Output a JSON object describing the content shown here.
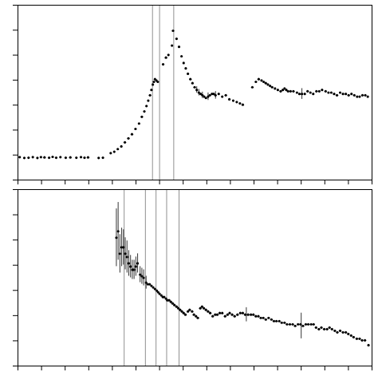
{
  "chart_data": [
    {
      "type": "scatter",
      "x": [
        0.005,
        0.018,
        0.03,
        0.042,
        0.055,
        0.065,
        0.075,
        0.088,
        0.098,
        0.108,
        0.12,
        0.135,
        0.148,
        0.165,
        0.178,
        0.188,
        0.198,
        0.228,
        0.24,
        0.262,
        0.272,
        0.282,
        0.292,
        0.302,
        0.312,
        0.322,
        0.332,
        0.342,
        0.35,
        0.357,
        0.363,
        0.368,
        0.373,
        0.377,
        0.381,
        0.384,
        0.387,
        0.391,
        0.395,
        0.41,
        0.418,
        0.425,
        0.435,
        0.438,
        0.448,
        0.455,
        0.462,
        0.468,
        0.474,
        0.48,
        0.487,
        0.493,
        0.499,
        0.505,
        0.511,
        0.516,
        0.521,
        0.526,
        0.531,
        0.537,
        0.542,
        0.548,
        0.553,
        0.558,
        0.567,
        0.577,
        0.587,
        0.597,
        0.608,
        0.618,
        0.627,
        0.635,
        0.662,
        0.672,
        0.68,
        0.688,
        0.694,
        0.7,
        0.706,
        0.712,
        0.718,
        0.726,
        0.734,
        0.742,
        0.748,
        0.753,
        0.758,
        0.763,
        0.77,
        0.778,
        0.788,
        0.795,
        0.802,
        0.81,
        0.818,
        0.826,
        0.834,
        0.843,
        0.851,
        0.859,
        0.869,
        0.877,
        0.885,
        0.893,
        0.901,
        0.91,
        0.918,
        0.926,
        0.934,
        0.942,
        0.95,
        0.958,
        0.965,
        0.973,
        0.981,
        0.988
      ],
      "values": [
        0.085,
        0.082,
        0.083,
        0.085,
        0.082,
        0.085,
        0.084,
        0.083,
        0.086,
        0.083,
        0.085,
        0.083,
        0.084,
        0.083,
        0.085,
        0.083,
        0.084,
        0.082,
        0.083,
        0.1,
        0.105,
        0.115,
        0.125,
        0.14,
        0.155,
        0.17,
        0.19,
        0.21,
        0.235,
        0.255,
        0.275,
        0.295,
        0.315,
        0.335,
        0.355,
        0.365,
        0.375,
        0.37,
        0.365,
        0.43,
        0.455,
        0.465,
        0.5,
        0.555,
        0.525,
        0.495,
        0.46,
        0.435,
        0.415,
        0.395,
        0.375,
        0.36,
        0.345,
        0.335,
        0.325,
        0.32,
        0.315,
        0.31,
        0.305,
        0.31,
        0.315,
        0.32,
        0.32,
        0.315,
        0.32,
        0.31,
        0.315,
        0.3,
        0.295,
        0.29,
        0.285,
        0.28,
        0.345,
        0.365,
        0.375,
        0.37,
        0.365,
        0.36,
        0.355,
        0.35,
        0.345,
        0.34,
        0.335,
        0.33,
        0.335,
        0.34,
        0.335,
        0.33,
        0.33,
        0.33,
        0.325,
        0.32,
        0.32,
        0.32,
        0.33,
        0.325,
        0.32,
        0.33,
        0.33,
        0.335,
        0.33,
        0.325,
        0.325,
        0.32,
        0.315,
        0.325,
        0.32,
        0.32,
        0.315,
        0.32,
        0.315,
        0.31,
        0.31,
        0.315,
        0.315,
        0.31
      ],
      "color": "#000000",
      "errorbars": {
        "x": [
          0.505,
          0.511,
          0.521,
          0.537,
          0.558,
          0.802
        ],
        "y": [
          0.335,
          0.325,
          0.315,
          0.31,
          0.315,
          0.32
        ],
        "err": [
          0.012,
          0.012,
          0.012,
          0.014,
          0.014,
          0.02
        ]
      },
      "vlines": {
        "x": [
          0.38,
          0.4,
          0.44
        ],
        "color": "#909090"
      },
      "xlim": [
        0.0,
        1.0
      ],
      "ylim": [
        0.0,
        0.65
      ],
      "xticks": [
        0,
        0.06666666666666667,
        0.13333333333333333,
        0.2,
        0.26666666666666666,
        0.3333333333333333,
        0.4,
        0.4666666666666667,
        0.5333333333333333,
        0.6,
        0.6666666666666666,
        0.7333333333333333,
        0.8,
        0.8666666666666667,
        0.9333333333333333,
        1
      ],
      "yticks": [
        0,
        0.09285714285714286,
        0.18571428571428572,
        0.2785714285714286,
        0.37142857142857144,
        0.4642857142857143,
        0.5571428571428572,
        0.65
      ],
      "grid": false,
      "tick_labels": false
    },
    {
      "type": "scatter",
      "x": [
        0.278,
        0.283,
        0.288,
        0.293,
        0.298,
        0.303,
        0.308,
        0.313,
        0.318,
        0.323,
        0.328,
        0.333,
        0.338,
        0.345,
        0.35,
        0.355,
        0.362,
        0.367,
        0.372,
        0.377,
        0.382,
        0.387,
        0.392,
        0.396,
        0.4,
        0.405,
        0.409,
        0.413,
        0.418,
        0.422,
        0.427,
        0.432,
        0.437,
        0.442,
        0.448,
        0.453,
        0.458,
        0.463,
        0.468,
        0.473,
        0.48,
        0.485,
        0.492,
        0.497,
        0.503,
        0.508,
        0.515,
        0.52,
        0.525,
        0.531,
        0.537,
        0.543,
        0.55,
        0.557,
        0.563,
        0.57,
        0.577,
        0.585,
        0.592,
        0.598,
        0.605,
        0.612,
        0.62,
        0.628,
        0.635,
        0.642,
        0.65,
        0.658,
        0.665,
        0.672,
        0.679,
        0.686,
        0.693,
        0.7,
        0.708,
        0.716,
        0.723,
        0.73,
        0.738,
        0.745,
        0.753,
        0.76,
        0.768,
        0.776,
        0.783,
        0.791,
        0.798,
        0.805,
        0.813,
        0.82,
        0.828,
        0.835,
        0.842,
        0.85,
        0.857,
        0.865,
        0.873,
        0.88,
        0.887,
        0.895,
        0.902,
        0.91,
        0.918,
        0.926,
        0.933,
        0.941,
        0.948,
        0.957,
        0.965,
        0.972,
        0.98,
        0.99
      ],
      "values": [
        0.6,
        0.62,
        0.55,
        0.57,
        0.57,
        0.55,
        0.54,
        0.52,
        0.51,
        0.5,
        0.5,
        0.51,
        0.52,
        0.485,
        0.48,
        0.475,
        0.46,
        0.455,
        0.455,
        0.45,
        0.445,
        0.44,
        0.435,
        0.43,
        0.425,
        0.42,
        0.415,
        0.415,
        0.41,
        0.405,
        0.405,
        0.4,
        0.395,
        0.39,
        0.385,
        0.38,
        0.375,
        0.37,
        0.365,
        0.36,
        0.37,
        0.375,
        0.37,
        0.36,
        0.355,
        0.35,
        0.38,
        0.385,
        0.38,
        0.375,
        0.37,
        0.365,
        0.355,
        0.36,
        0.36,
        0.365,
        0.365,
        0.355,
        0.36,
        0.365,
        0.36,
        0.355,
        0.36,
        0.365,
        0.365,
        0.36,
        0.36,
        0.36,
        0.36,
        0.355,
        0.355,
        0.35,
        0.35,
        0.345,
        0.35,
        0.345,
        0.34,
        0.34,
        0.34,
        0.335,
        0.335,
        0.33,
        0.33,
        0.33,
        0.325,
        0.33,
        0.33,
        0.325,
        0.33,
        0.33,
        0.33,
        0.33,
        0.32,
        0.315,
        0.32,
        0.315,
        0.315,
        0.32,
        0.315,
        0.31,
        0.305,
        0.31,
        0.305,
        0.305,
        0.3,
        0.295,
        0.29,
        0.285,
        0.285,
        0.28,
        0.28,
        0.265
      ],
      "color": "#000000",
      "errorbars": {
        "x": [
          0.278,
          0.283,
          0.288,
          0.293,
          0.298,
          0.303,
          0.308,
          0.313,
          0.318,
          0.323,
          0.328,
          0.333,
          0.338,
          0.345,
          0.35,
          0.355,
          0.362,
          0.645,
          0.8
        ],
        "y": [
          0.6,
          0.62,
          0.55,
          0.57,
          0.57,
          0.55,
          0.54,
          0.52,
          0.51,
          0.5,
          0.5,
          0.51,
          0.52,
          0.485,
          0.48,
          0.475,
          0.46,
          0.36,
          0.325
        ],
        "err": [
          0.09,
          0.09,
          0.06,
          0.06,
          0.055,
          0.05,
          0.05,
          0.04,
          0.035,
          0.03,
          0.03,
          0.03,
          0.03,
          0.025,
          0.025,
          0.025,
          0.02,
          0.022,
          0.04
        ]
      },
      "vlines": {
        "x": [
          0.3,
          0.36,
          0.39,
          0.42,
          0.455
        ],
        "color": "#909090"
      },
      "xlim": [
        0.0,
        1.0
      ],
      "ylim": [
        0.2,
        0.75
      ],
      "xticks": [
        0,
        0.06666666666666667,
        0.13333333333333333,
        0.2,
        0.26666666666666666,
        0.3333333333333333,
        0.4,
        0.4666666666666667,
        0.5333333333333333,
        0.6,
        0.6666666666666666,
        0.7333333333333333,
        0.8,
        0.8666666666666667,
        0.9333333333333333,
        1
      ],
      "yticks": [
        0.2,
        0.2785714285714285,
        0.35714285714285715,
        0.4357142857142857,
        0.5142857142857142,
        0.5928571428571429,
        0.6714285714285714,
        0.75
      ],
      "grid": false,
      "tick_labels": false
    }
  ]
}
